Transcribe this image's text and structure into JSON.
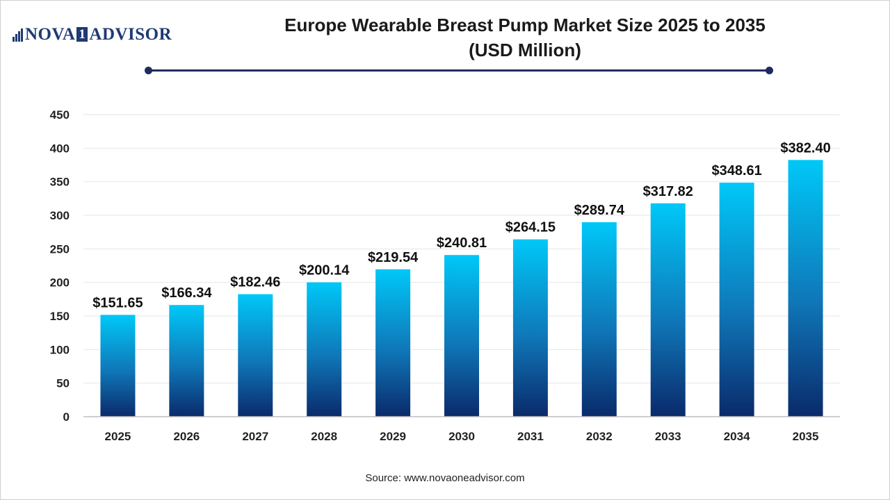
{
  "logo": {
    "left": "NOVA",
    "box": "1",
    "right": "ADVISOR"
  },
  "title_line1": "Europe Wearable Breast Pump Market Size 2025 to 2035",
  "title_line2": "(USD Million)",
  "source": "Source: www.novaoneadvisor.com",
  "colors": {
    "bar_top": "#00c8f8",
    "bar_bottom": "#0a2a6b",
    "title_rule": "#1f2b5e",
    "logo": "#1f3a73"
  },
  "chart_data": {
    "type": "bar",
    "title": "Europe Wearable Breast Pump Market Size 2025 to 2035 (USD Million)",
    "categories": [
      "2025",
      "2026",
      "2027",
      "2028",
      "2029",
      "2030",
      "2031",
      "2032",
      "2033",
      "2034",
      "2035"
    ],
    "values": [
      151.65,
      166.34,
      182.46,
      200.14,
      219.54,
      240.81,
      264.15,
      289.74,
      317.82,
      348.61,
      382.4
    ],
    "value_labels": [
      "$151.65",
      "$166.34",
      "$182.46",
      "$200.14",
      "$219.54",
      "$240.81",
      "$264.15",
      "$289.74",
      "$317.82",
      "$348.61",
      "$382.40"
    ],
    "yticks": [
      "0",
      "50",
      "100",
      "150",
      "200",
      "250",
      "300",
      "350",
      "400",
      "450"
    ],
    "ylim": [
      0,
      450
    ],
    "xlabel": "",
    "ylabel": "",
    "grid": true,
    "legend": "none"
  }
}
